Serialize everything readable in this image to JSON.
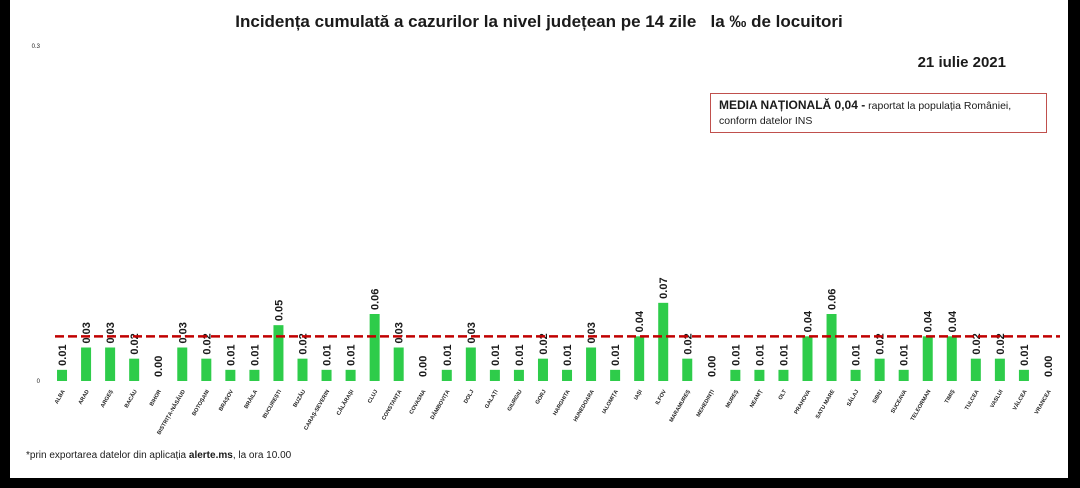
{
  "title": "Incidența cumulată a cazurilor la nivel județean pe 14 zile   la ‰ de locuitori",
  "date": "21 iulie 2021",
  "info_box": {
    "strong": "MEDIA NAȚIONALĂ  0,04 -",
    "text": " raportat la populația României, conform datelor INS"
  },
  "footnote": {
    "prefix": "*prin exportarea datelor din aplicația ",
    "app": "alerte.ms",
    "suffix": ", la ora 10.00"
  },
  "colors": {
    "bar": "#2ecc4a",
    "reference_line": "#c00000"
  },
  "chart_data": {
    "type": "bar",
    "title": "Incidența cumulată a cazurilor la nivel județean pe 14 zile   la ‰ de locuitori",
    "xlabel": "",
    "ylabel": "",
    "ylim": [
      0,
      0.3
    ],
    "y_ticks": [
      "0",
      "0.3"
    ],
    "grid": false,
    "reference_line": {
      "value": 0.04,
      "style": "dashed"
    },
    "categories": [
      "ALBA",
      "ARAD",
      "ARGEȘ",
      "BACĂU",
      "BIHOR",
      "BISTRIȚA-NĂSĂUD",
      "BOTOȘANI",
      "BRAȘOV",
      "BRĂILA",
      "BUCUREȘTI",
      "BUZĂU",
      "CARAȘ-SEVERIN",
      "CĂLĂRAȘI",
      "CLUJ",
      "CONSTANȚA",
      "COVASNA",
      "DÂMBOVIȚA",
      "DOLJ",
      "GALAȚI",
      "GIURGIU",
      "GORJ",
      "HARGHITA",
      "HUNEDOARA",
      "IALOMIȚA",
      "IAȘI",
      "ILFOV",
      "MARAMUREȘ",
      "MEHEDINȚI",
      "MUREȘ",
      "NEAMȚ",
      "OLT",
      "PRAHOVA",
      "SATU MARE",
      "SĂLAJ",
      "SIBIU",
      "SUCEAVA",
      "TELEORMAN",
      "TIMIȘ",
      "TULCEA",
      "VASLUI",
      "VÂLCEA",
      "VRANCEA"
    ],
    "values": [
      0.01,
      0.03,
      0.03,
      0.02,
      0.0,
      0.03,
      0.02,
      0.01,
      0.01,
      0.05,
      0.02,
      0.01,
      0.01,
      0.06,
      0.03,
      0.0,
      0.01,
      0.03,
      0.01,
      0.01,
      0.02,
      0.01,
      0.03,
      0.01,
      0.04,
      0.07,
      0.02,
      0.0,
      0.01,
      0.01,
      0.01,
      0.04,
      0.06,
      0.01,
      0.02,
      0.01,
      0.04,
      0.04,
      0.02,
      0.02,
      0.01,
      0.0
    ],
    "value_labels": [
      "0.01",
      "0.03",
      "0.03",
      "0.02",
      "0.00",
      "0.03",
      "0.02",
      "0.01",
      "0.01",
      "0.05",
      "0.02",
      "0.01",
      "0.01",
      "0.06",
      "0.03",
      "0.00",
      "0.01",
      "0.03",
      "0.01",
      "0.01",
      "0.02",
      "0.01",
      "0.03",
      "0.01",
      "0.04",
      "0.07",
      "0.02",
      "0.00",
      "0.01",
      "0.01",
      "0.01",
      "0.04",
      "0.06",
      "0.01",
      "0.02",
      "0.01",
      "0.04",
      "0.04",
      "0.02",
      "0.02",
      "0.01",
      "0.00"
    ]
  }
}
